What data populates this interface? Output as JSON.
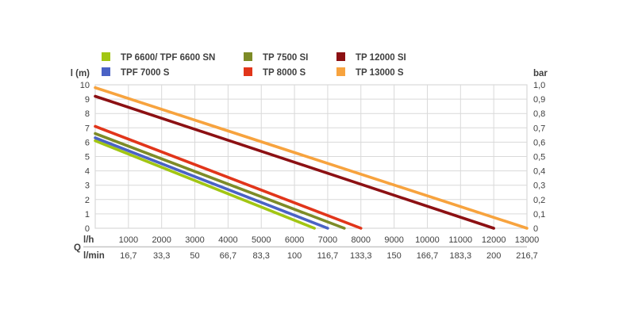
{
  "chart": {
    "left_unit": "l (m)",
    "right_unit": "bar",
    "q_label": "Q",
    "row1_unit": "l/h",
    "row2_unit": "l/min"
  },
  "colors": {
    "background": "#ffffff",
    "grid": "#d9d9d9",
    "text": "#3f3f3f",
    "separator": "#c6c6c6"
  },
  "chart_data": {
    "type": "line",
    "legend_position": "top",
    "grid": true,
    "x_axis": {
      "quantity_label": "Q",
      "unit_primary": "l/h",
      "unit_secondary": "l/min",
      "range": [
        0,
        13000
      ],
      "ticks_lh": [
        1000,
        2000,
        3000,
        4000,
        5000,
        6000,
        7000,
        8000,
        9000,
        10000,
        11000,
        12000,
        13000
      ],
      "ticks_lmin": [
        "16,7",
        "33,3",
        "50",
        "66,7",
        "83,3",
        "100",
        "116,7",
        "133,3",
        "150",
        "166,7",
        "183,3",
        "200",
        "216,7"
      ]
    },
    "y_axis_left": {
      "label": "l (m)",
      "range": [
        0,
        10
      ],
      "ticks": [
        10,
        9,
        8,
        7,
        6,
        5,
        4,
        3,
        2,
        1,
        0
      ]
    },
    "y_axis_right": {
      "label": "bar",
      "range": [
        0,
        1.0
      ],
      "ticks": [
        "1,0",
        "0,9",
        "0,8",
        "0,7",
        "0,6",
        "0,5",
        "0,4",
        "0,3",
        "0,2",
        "0,1",
        "0"
      ]
    },
    "series": [
      {
        "name": "TP 6600/ TPF 6600 SN",
        "color": "#a2c613",
        "points": [
          [
            0,
            6.1
          ],
          [
            6600,
            0
          ]
        ]
      },
      {
        "name": "TPF 7000 S",
        "color": "#4a62c5",
        "points": [
          [
            0,
            6.3
          ],
          [
            7000,
            0
          ]
        ]
      },
      {
        "name": "TP 7500 SI",
        "color": "#7d8b27",
        "points": [
          [
            0,
            6.6
          ],
          [
            7500,
            0
          ]
        ]
      },
      {
        "name": "TP 8000 S",
        "color": "#e1351a",
        "points": [
          [
            0,
            7.1
          ],
          [
            8000,
            0
          ]
        ]
      },
      {
        "name": "TP 12000 SI",
        "color": "#8c1013",
        "points": [
          [
            0,
            9.2
          ],
          [
            12000,
            0
          ]
        ]
      },
      {
        "name": "TP 13000 S",
        "color": "#f7a33e",
        "points": [
          [
            0,
            9.8
          ],
          [
            13000,
            0
          ]
        ]
      }
    ],
    "legend_columns": [
      [
        0,
        1
      ],
      [
        2,
        3
      ],
      [
        4,
        5
      ]
    ]
  }
}
